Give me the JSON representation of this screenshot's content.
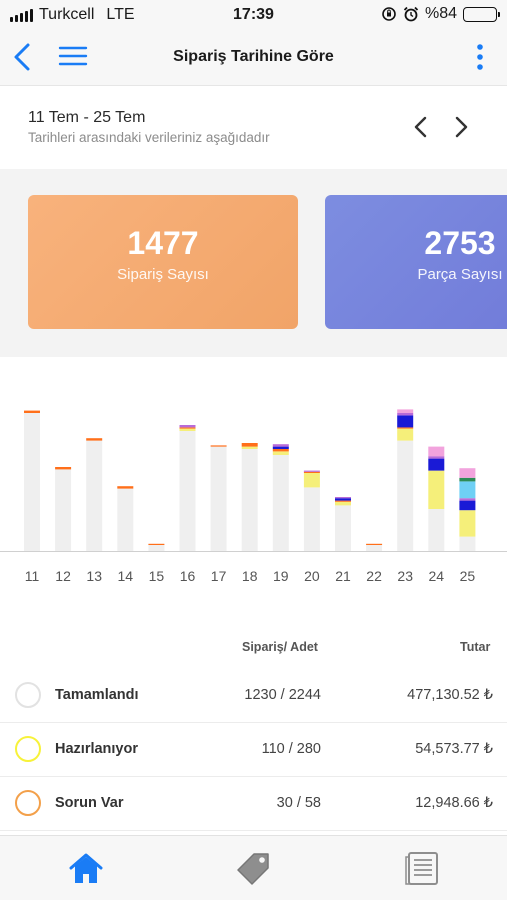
{
  "status": {
    "carrier": "Turkcell",
    "network": "LTE",
    "time": "17:39",
    "battery": "%84",
    "battery_level": 0.84
  },
  "nav": {
    "title": "Sipariş Tarihine Göre",
    "back_icon": "chevron-left-icon",
    "menu_icon": "hamburger-icon",
    "more_icon": "vertical-dots-icon",
    "accent": "#1a7cf5"
  },
  "date_range": {
    "range": "11 Tem - 25 Tem",
    "subtitle": "Tarihleri arasındaki verileriniz aşağıdadır"
  },
  "cards": [
    {
      "value": "1477",
      "label": "Sipariş Sayısı"
    },
    {
      "value": "2753",
      "label": "Parça Sayısı"
    }
  ],
  "chart_data": {
    "type": "bar",
    "categories": [
      "11",
      "12",
      "13",
      "14",
      "15",
      "16",
      "17",
      "18",
      "19",
      "20",
      "21",
      "22",
      "23",
      "24",
      "25"
    ],
    "series": [
      {
        "color": "#efefef",
        "values": [
          115,
          68,
          92,
          52,
          5,
          100,
          87,
          85,
          80,
          53,
          38,
          5,
          92,
          35,
          12
        ]
      },
      {
        "color": "#f5ef7a",
        "values": [
          0,
          0,
          0,
          0,
          0,
          2,
          0,
          2,
          3,
          12,
          3,
          0,
          10,
          32,
          22
        ]
      },
      {
        "color": "#ff6f1a",
        "values": [
          2,
          2,
          2,
          2,
          1,
          1,
          1,
          3,
          2,
          1,
          1,
          1,
          1,
          0,
          0
        ]
      },
      {
        "color": "#1a1ad6",
        "values": [
          0,
          0,
          0,
          0,
          0,
          0,
          0,
          0,
          2,
          0,
          2,
          0,
          10,
          10,
          8
        ]
      },
      {
        "color": "#b86bd8",
        "values": [
          0,
          0,
          0,
          0,
          0,
          2,
          0,
          0,
          2,
          1,
          1,
          0,
          2,
          2,
          2
        ]
      },
      {
        "color": "#6fd0f5",
        "values": [
          0,
          0,
          0,
          0,
          0,
          0,
          0,
          0,
          0,
          0,
          0,
          0,
          0,
          0,
          14
        ]
      },
      {
        "color": "#2e8b57",
        "values": [
          0,
          0,
          0,
          0,
          0,
          0,
          0,
          0,
          0,
          0,
          0,
          0,
          0,
          0,
          3
        ]
      },
      {
        "color": "#f2a3dd",
        "values": [
          0,
          0,
          0,
          0,
          0,
          0,
          0,
          0,
          0,
          0,
          0,
          0,
          3,
          8,
          8
        ]
      }
    ],
    "ylim": [
      0,
      125
    ],
    "grid": false,
    "baseline_color": "#d0d0d0"
  },
  "table": {
    "headers": {
      "count": "Sipariş/ Adet",
      "amount": "Tutar"
    },
    "rows": [
      {
        "name": "Tamamlandı",
        "count": "1230 / 2244",
        "amount": "477,130.52 ₺",
        "color": "#e2e2e2"
      },
      {
        "name": "Hazırlanıyor",
        "count": "110 / 280",
        "amount": "54,573.77 ₺",
        "color": "#f7f23a"
      },
      {
        "name": "Sorun Var",
        "count": "30 / 58",
        "amount": "12,948.66 ₺",
        "color": "#f3a04a"
      }
    ]
  },
  "tabs": [
    {
      "icon": "home-icon",
      "active": true
    },
    {
      "icon": "price-tag-icon",
      "active": false
    },
    {
      "icon": "document-icon",
      "active": false
    }
  ]
}
